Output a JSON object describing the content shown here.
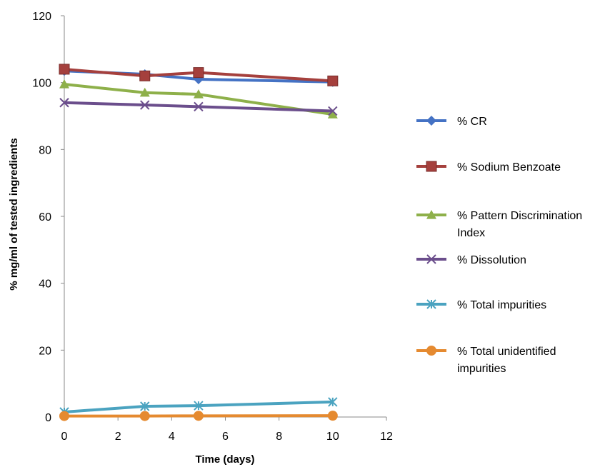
{
  "chart_data": {
    "type": "line",
    "xlabel": "Time (days)",
    "ylabel": "% mg/ml of tested ingredients",
    "xlim": [
      0,
      12
    ],
    "ylim": [
      0,
      120
    ],
    "xticks": [
      0,
      2,
      4,
      6,
      8,
      10,
      12
    ],
    "yticks": [
      0,
      20,
      40,
      60,
      80,
      100,
      120
    ],
    "grid": false,
    "legend_position": "right",
    "series": [
      {
        "name": "% CR",
        "color": "#4472C4",
        "marker": "diamond",
        "x": [
          0,
          3,
          5,
          10
        ],
        "y": [
          103.5,
          102.5,
          101,
          100.2
        ]
      },
      {
        "name": "% Sodium Benzoate",
        "color": "#A5403D",
        "marker": "square",
        "x": [
          0,
          3,
          5,
          10
        ],
        "y": [
          104,
          102,
          103,
          100.5
        ]
      },
      {
        "name": "% Pattern Discrimination Index",
        "color": "#8EB04A",
        "marker": "triangle",
        "x": [
          0,
          3,
          5,
          10
        ],
        "y": [
          99.5,
          97,
          96.5,
          90.5
        ]
      },
      {
        "name": "% Dissolution",
        "color": "#6B4E8C",
        "marker": "x",
        "x": [
          0,
          3,
          5,
          10
        ],
        "y": [
          94,
          93.3,
          92.8,
          91.5
        ]
      },
      {
        "name": "% Total impurities",
        "color": "#4BA3C0",
        "marker": "star",
        "x": [
          0,
          3,
          5,
          10
        ],
        "y": [
          1.5,
          3.2,
          3.4,
          4.5
        ]
      },
      {
        "name": "% Total unidentified impurities",
        "color": "#E58A30",
        "marker": "circle",
        "x": [
          0,
          3,
          5,
          10
        ],
        "y": [
          0.3,
          0.3,
          0.35,
          0.4
        ]
      }
    ]
  }
}
